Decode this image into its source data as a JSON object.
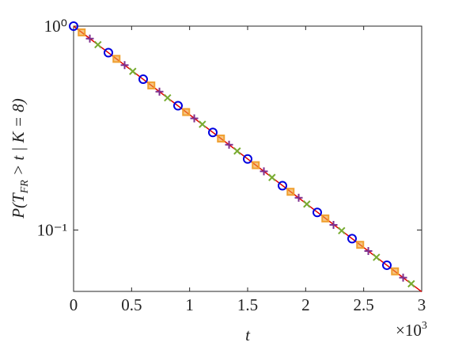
{
  "chart_data": {
    "type": "line",
    "xlabel": "t",
    "ylabel": [
      "P(T",
      "FR",
      " > t | K = 8)"
    ],
    "x_multiplier": [
      "×10",
      "3"
    ],
    "log_y": true,
    "xlim": [
      0,
      3000
    ],
    "ylim": [
      0.05,
      1
    ],
    "xticks": [
      0,
      {
        "value": 500,
        "label": "0.5"
      },
      {
        "value": 1000,
        "label": "1"
      },
      {
        "value": 1500,
        "label": "1.5"
      },
      {
        "value": 2000,
        "label": "2"
      },
      {
        "value": 2500,
        "label": "2.5"
      },
      {
        "value": 3000,
        "label": "3"
      }
    ],
    "yticks": [
      {
        "value": 0.1,
        "label": "10⁻¹"
      },
      {
        "value": 1,
        "label": "10⁰"
      }
    ],
    "series": [
      {
        "color": "#e00000",
        "marker": "line",
        "x": [
          0,
          3000
        ],
        "values": [
          1,
          0.0498
        ]
      },
      {
        "color": "#0000e0",
        "marker": "circle",
        "x": [
          0,
          300,
          600,
          900,
          1200,
          1500,
          1800,
          2100,
          2400,
          2700
        ],
        "values": [
          1,
          0.741,
          0.549,
          0.407,
          0.301,
          0.223,
          0.165,
          0.122,
          0.0907,
          0.0672
        ]
      },
      {
        "color": "#f0a030",
        "marker": "square",
        "x": [
          70,
          370,
          670,
          970,
          1270,
          1570,
          1870,
          2170,
          2470,
          2770
        ],
        "values": [
          0.932,
          0.691,
          0.512,
          0.379,
          0.281,
          0.208,
          0.154,
          0.114,
          0.0846,
          0.0627
        ]
      },
      {
        "color": "#7e2f8e",
        "marker": "plus",
        "x": [
          140,
          440,
          740,
          1040,
          1340,
          1640,
          1940,
          2240,
          2540,
          2840
        ],
        "values": [
          0.869,
          0.644,
          0.477,
          0.353,
          0.262,
          0.194,
          0.144,
          0.106,
          0.0789,
          0.0584
        ]
      },
      {
        "color": "#77ac30",
        "marker": "cross",
        "x": [
          210,
          510,
          810,
          1110,
          1410,
          1710,
          2010,
          2310,
          2610,
          2910
        ],
        "values": [
          0.811,
          0.6,
          0.445,
          0.33,
          0.244,
          0.181,
          0.134,
          0.0993,
          0.0735,
          0.0545
        ]
      }
    ]
  }
}
